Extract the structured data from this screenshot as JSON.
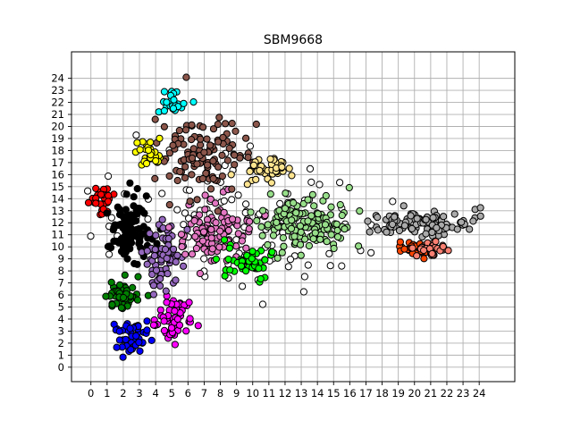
{
  "chart_data": {
    "type": "scatter",
    "title": "SBM9668",
    "xlabel": "",
    "ylabel": "",
    "xlim": [
      -1.2,
      26.2
    ],
    "ylim": [
      -1.2,
      26.2
    ],
    "x_ticks": [
      0,
      1,
      2,
      3,
      4,
      5,
      6,
      7,
      8,
      9,
      10,
      11,
      12,
      13,
      14,
      15,
      16,
      17,
      18,
      19,
      20,
      21,
      22,
      23,
      24
    ],
    "y_ticks": [
      0,
      1,
      2,
      3,
      4,
      5,
      6,
      7,
      8,
      9,
      10,
      11,
      12,
      13,
      14,
      15,
      16,
      17,
      18,
      19,
      20,
      21,
      22,
      23,
      24
    ],
    "grid": true,
    "marker": "circle-black-edge",
    "series": [
      {
        "color": "#ffffff",
        "cx": 9.0,
        "cy": 12.0,
        "sx": 8.0,
        "sy": 5.0,
        "n": 120
      },
      {
        "color": "#ff0000",
        "cx": 0.8,
        "cy": 13.8,
        "sx": 0.6,
        "sy": 1.2,
        "n": 30
      },
      {
        "color": "#000000",
        "cx": 2.5,
        "cy": 11.0,
        "sx": 1.2,
        "sy": 2.3,
        "n": 110
      },
      {
        "color": "#008000",
        "cx": 2.0,
        "cy": 6.0,
        "sx": 1.1,
        "sy": 1.1,
        "n": 45
      },
      {
        "color": "#0000ff",
        "cx": 2.6,
        "cy": 2.6,
        "sx": 1.0,
        "sy": 1.2,
        "n": 45
      },
      {
        "color": "#ff00ff",
        "cx": 5.0,
        "cy": 4.0,
        "sx": 1.2,
        "sy": 1.6,
        "n": 55
      },
      {
        "color": "#9467bd",
        "cx": 4.5,
        "cy": 9.0,
        "sx": 1.2,
        "sy": 2.4,
        "n": 70
      },
      {
        "color": "#e377c2",
        "cx": 7.6,
        "cy": 11.2,
        "sx": 2.1,
        "sy": 2.3,
        "n": 100
      },
      {
        "color": "#8c564b",
        "cx": 7.0,
        "cy": 17.5,
        "sx": 2.2,
        "sy": 3.0,
        "n": 110
      },
      {
        "color": "#ffff00",
        "cx": 3.5,
        "cy": 18.0,
        "sx": 0.8,
        "sy": 1.6,
        "n": 30
      },
      {
        "color": "#00ffff",
        "cx": 5.0,
        "cy": 22.0,
        "sx": 0.8,
        "sy": 0.8,
        "n": 25
      },
      {
        "color": "#ffe48f",
        "cx": 10.8,
        "cy": 16.3,
        "sx": 1.5,
        "sy": 0.9,
        "n": 45
      },
      {
        "color": "#98df8a",
        "cx": 13.5,
        "cy": 12.0,
        "sx": 2.7,
        "sy": 2.2,
        "n": 140
      },
      {
        "color": "#00ff00",
        "cx": 9.8,
        "cy": 8.8,
        "sx": 1.5,
        "sy": 1.3,
        "n": 50
      },
      {
        "color": "#aaaaaa",
        "cx": 20.5,
        "cy": 12.0,
        "sx": 3.0,
        "sy": 1.0,
        "n": 95
      },
      {
        "color": "#ff4500",
        "cx": 20.0,
        "cy": 9.9,
        "sx": 1.1,
        "sy": 0.6,
        "n": 40
      },
      {
        "color": "#fa8072",
        "cx": 21.2,
        "cy": 9.8,
        "sx": 1.0,
        "sy": 0.6,
        "n": 30
      }
    ]
  }
}
